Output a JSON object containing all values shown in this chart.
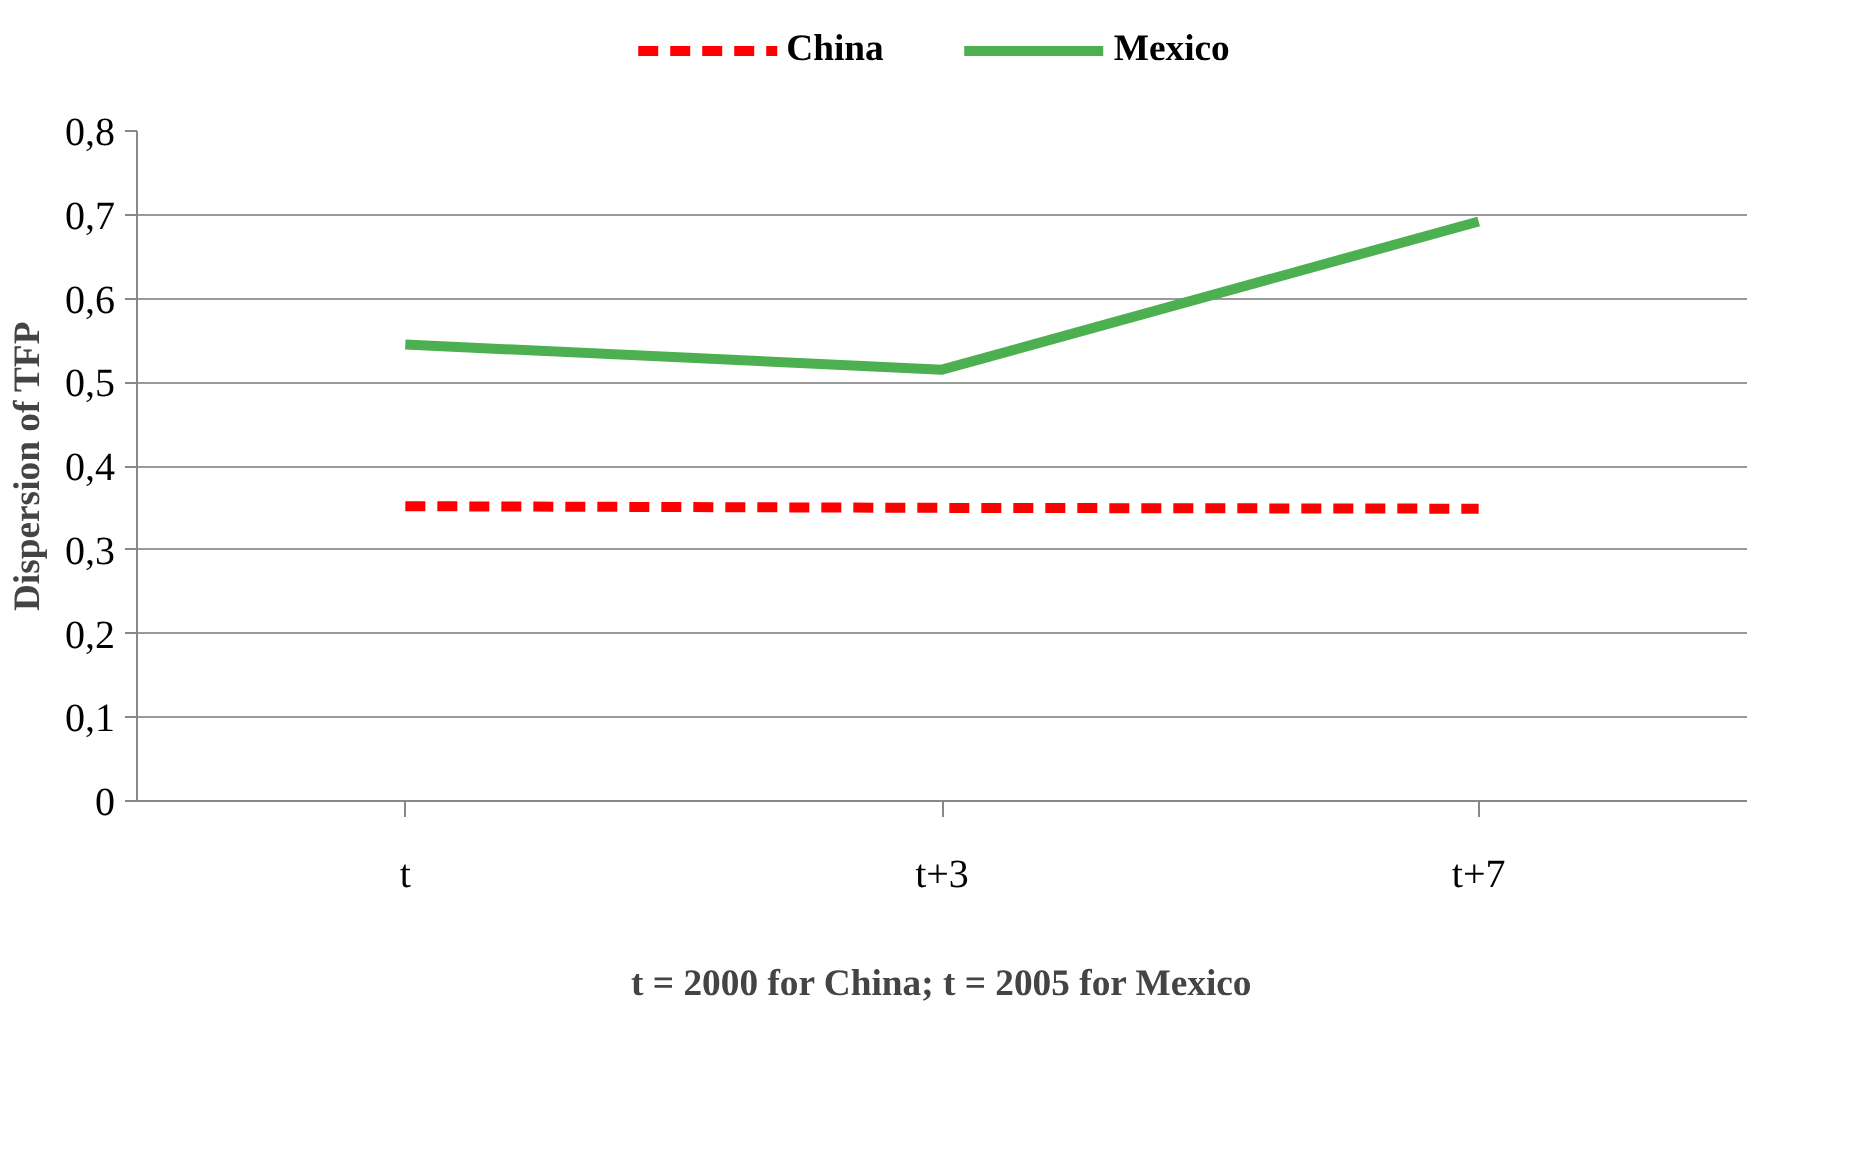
{
  "chart_data": {
    "type": "line",
    "xlabel": "t = 2000 for China; t = 2005 for Mexico",
    "ylabel": "Dispersion of TFP",
    "categories": [
      "t",
      "t+3",
      "t+7"
    ],
    "series": [
      {
        "name": "China",
        "color": "#ff0000",
        "values": [
          0.352,
          0.35,
          0.349
        ],
        "line_style": "dashed"
      },
      {
        "name": "Mexico",
        "color": "#4caf50",
        "values": [
          0.545,
          0.515,
          0.692
        ],
        "line_style": "solid"
      }
    ],
    "ylim": [
      0,
      0.8
    ],
    "yticks": [
      0,
      {
        "value": 0.1,
        "label": "0,1"
      },
      {
        "value": 0.2,
        "label": "0,2"
      },
      {
        "value": 0.3,
        "label": "0,3"
      },
      {
        "value": 0.4,
        "label": "0,4"
      },
      {
        "value": 0.5,
        "label": "0,5"
      },
      {
        "value": 0.6,
        "label": "0,6"
      },
      {
        "value": 0.7,
        "label": "0,7"
      },
      {
        "value": 0.8,
        "label": "0,8"
      }
    ],
    "grid": "y",
    "legend": "top",
    "marker": "none"
  }
}
